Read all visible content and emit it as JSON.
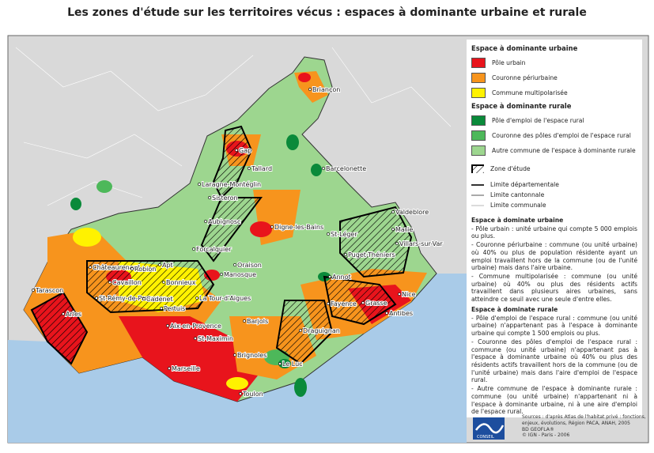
{
  "title": "Les zones d'étude sur les territoires vécus : espaces à dominante urbaine et rurale",
  "legend": {
    "urban_heading": "Espace à dominante urbaine",
    "urban_items": [
      {
        "label": "Pôle urbain",
        "color": "#e8141c"
      },
      {
        "label": "Couronne périurbaine",
        "color": "#f7941d"
      },
      {
        "label": "Commune multipolarisée",
        "color": "#fff200"
      }
    ],
    "rural_heading": "Espace à dominante rurale",
    "rural_items": [
      {
        "label": "Pôle d'emploi de l'espace rural",
        "color": "#0a8a3a"
      },
      {
        "label": "Couronne des pôles d'emploi de l'espace rural",
        "color": "#4db85a"
      },
      {
        "label": "Autre commune de l'espace à dominante rurale",
        "color": "#9dd68f"
      }
    ],
    "study_zone": "Zone d'étude",
    "limits": [
      "Limite départementale",
      "Limite cantonnale",
      "Limite communale"
    ]
  },
  "definitions": [
    {
      "heading": "Espace à dominate urbaine",
      "items": [
        "- Pôle urbain : unité urbaine qui compte 5 000 emplois ou plus.",
        "- Couronne périurbaine : commune (ou unité urbaine) où 40% ou plus de population résidente ayant un emploi travaillent hors de la commune (ou de l'unité urbaine) mais dans l'aire urbaine.",
        "- Commune multipolarisée : commune (ou unité urbaine) où 40% ou plus des résidents actifs travaillent dans plusieurs aires urbaines, sans atteindre ce seuil avec une seule d'entre elles."
      ]
    },
    {
      "heading": "Espace à dominate rurale",
      "items": [
        "- Pôle d'emploi de l'espace rural : commune (ou unité urbaine) n'appartenant pas à l'espace à dominante urbaine qui compte 1 500 emplois ou plus.",
        "- Couronne des pôles d'emploi de l'espace rural : commune (ou unité urbaine) n'appartenant pas à l'espace à dominante urbaine où 40% ou plus des résidents actifs travaillent hors de la commune (ou de l'unité urbaine) mais dans l'aire d'emploi de l'espace rural.",
        "- Autre commune de l'espace à dominante rurale : commune (ou unité urbaine) n'appartenant ni à l'espace à dominante urbaine, ni à une aire d'emploi de l'espace rural."
      ]
    }
  ],
  "towns": [
    "Briançon",
    "Gap",
    "Tallard",
    "Barcelonette",
    "Laragne-Montéglin",
    "Sisteron",
    "Aubignosc",
    "Digne-les-Bains",
    "St-Léger",
    "Valdeblore",
    "Marie",
    "Villars-sur-Var",
    "Forcalquier",
    "Oraison",
    "Manosque",
    "Puget-Théniers",
    "Annot",
    "Châteaurenard",
    "Robion",
    "Apt",
    "Cavaillon",
    "Bonnieux",
    "St-Rémy-de-Provence",
    "Cadenet",
    "Pertuis",
    "La Tour-d'Aigues",
    "Tarascon",
    "Arles",
    "Aix-en-Provence",
    "St-Maximin",
    "Barjols",
    "Draguignan",
    "Fayence",
    "Grasse",
    "Nice",
    "Antibes",
    "Brignoles",
    "Le Luc",
    "Marseille",
    "Toulon"
  ],
  "logo": [
    "habitat et territoires",
    "CONSEIL"
  ],
  "sources": [
    "Sources : d'après Atlas de l'habitat privé : fonctions, enjeux, évolutions, Région PACA, ANAH, 2005",
    "BD GEOFLA®",
    "© IGN - Paris - 2006"
  ]
}
